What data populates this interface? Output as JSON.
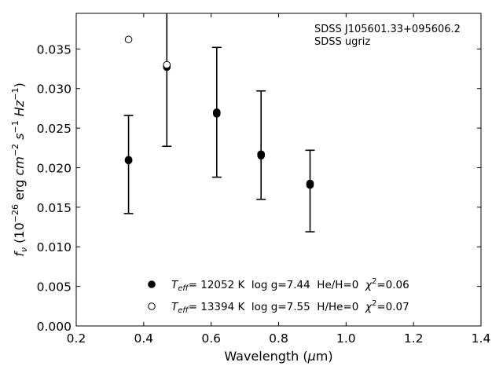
{
  "chart_data": {
    "type": "scatter",
    "title": "",
    "xlabel": "Wavelength (μm)",
    "ylabel": "fν (10⁻²⁶ erg cm⁻² s⁻¹ Hz⁻¹)",
    "xlim": [
      0.2,
      1.4
    ],
    "ylim": [
      0.0,
      0.0395
    ],
    "x_ticks": [
      "0.2",
      "0.4",
      "0.6",
      "0.8",
      "1.0",
      "1.2",
      "1.4"
    ],
    "y_ticks": [
      "0.000",
      "0.005",
      "0.010",
      "0.015",
      "0.020",
      "0.025",
      "0.030",
      "0.035"
    ],
    "grid": false,
    "legend_position": "bottom-center",
    "annotations": [
      "SDSS J105601.33+095606.2",
      "SDSS ugriz"
    ],
    "observed": {
      "name": "SDSS ugriz",
      "x": [
        0.3551,
        0.4686,
        0.6166,
        0.748,
        0.8932
      ],
      "y": [
        0.021,
        0.0329,
        0.027,
        0.0217,
        0.018
      ],
      "err_low": [
        0.0142,
        0.0227,
        0.0188,
        0.016,
        0.0119
      ],
      "err_high": [
        0.0266,
        0.0396,
        0.0352,
        0.0297,
        0.0222
      ]
    },
    "series": [
      {
        "label_parts": {
          "teff_value": "= 12052 K",
          "rest": "  log g=7.44  He/H=0  ",
          "chi_value": "=0.06"
        },
        "marker": "filled",
        "x": [
          0.3551,
          0.4686,
          0.6166,
          0.748,
          0.8932
        ],
        "y": [
          0.0209,
          0.0327,
          0.0268,
          0.0215,
          0.0178
        ]
      },
      {
        "label_parts": {
          "teff_value": "= 13394 K",
          "rest": "  log g=7.55  H/He=0  ",
          "chi_value": "=0.07"
        },
        "marker": "open",
        "x": [
          0.3551,
          0.4686
        ],
        "y": [
          0.0362,
          0.033
        ]
      }
    ]
  }
}
